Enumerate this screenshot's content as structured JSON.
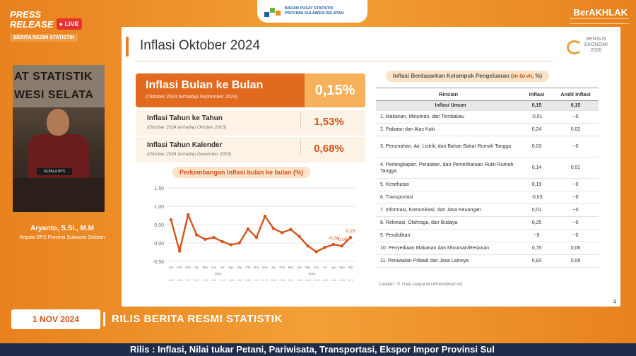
{
  "broadcast": {
    "press_release": "PRESS RELEASE",
    "live": "LIVE",
    "berita_label": "BERITA RESMI STATISTIK",
    "video_wall_line1": "AT STATISTIK",
    "video_wall_line2": "WESI SELATA",
    "nameplate": "KEPALA BPS",
    "speaker_name": "Aryanto, S.Si., M.M",
    "speaker_title": "Kepala BPS Provinsi Sulawesi Selatan",
    "top_logo_line1": "BADAN PUSAT STATISTIK",
    "top_logo_line2": "PROVINSI SULAWESI SELATAN",
    "berakhlak": "BerAKHLAK",
    "date": "1 NOV 2024",
    "rilis_title": "RILIS BERITA RESMI STATISTIK",
    "ticker": "Rilis : Inflasi, Nilai tukar Petani, Pariwisata, Transportasi, Ekspor Impor Provinsi Sul"
  },
  "slide": {
    "title": "Inflasi Oktober 2024",
    "sensus_logo": [
      "SENSUS",
      "EKONOMI",
      "2026"
    ],
    "mom": {
      "label": "Inflasi Bulan ke Bulan",
      "sub": "(Oktober 2024 terhadap September 2024)",
      "value": "0,15%"
    },
    "yoy": {
      "label": "Inflasi Tahun ke Tahun",
      "sub": "(Oktober 2024 terhadap Oktober 2023)",
      "value": "1,53%"
    },
    "ytd": {
      "label": "Inflasi Tahun Kalender",
      "sub": "(Oktober 2024 terhadap Desember 2023)",
      "value": "0,68%"
    },
    "chart_title": "Perkembangan Inflasi bulan ke bulan (%)",
    "table_title_prefix": "Inflasi Berdasarkan Kelompok Pengeluaran (",
    "table_title_hl": "m-to-m",
    "table_title_suffix": ", %)",
    "table_headers": [
      "Rincian",
      "Inflasi",
      "Andil Inflasi"
    ],
    "table_rows": [
      {
        "label": "Inflasi Umum",
        "inflasi": "0,15",
        "andil": "0,15",
        "umum": true
      },
      {
        "label": "1.  Makanan, Minuman, dan Tembakau",
        "inflasi": "-0,01",
        "andil": "~0"
      },
      {
        "label": "2.  Pakaian dan Alas Kaki",
        "inflasi": "0,24",
        "andil": "0,02"
      },
      {
        "label": "3.  Perumahan, Air, Listrik, dan Bahan Bakar Rumah Tangga",
        "inflasi": "0,03",
        "andil": "~0"
      },
      {
        "label": "4.  Perlengkapan, Peralatan, dan Pemeliharaan Rutin Rumah Tangga",
        "inflasi": "0,14",
        "andil": "0,01"
      },
      {
        "label": "5.  Kesehatan",
        "inflasi": "0,19",
        "andil": "~0"
      },
      {
        "label": "6.  Transportasi",
        "inflasi": "-0,03",
        "andil": "~0"
      },
      {
        "label": "7.  Informasi, Komunikasi, dan Jasa Keuangan",
        "inflasi": "0,01",
        "andil": "~0"
      },
      {
        "label": "8.  Rekreasi, Olahraga, dan Budaya",
        "inflasi": "0,25",
        "andil": "~0"
      },
      {
        "label": "9.  Pendidikan",
        "inflasi": "~0",
        "andil": "~0"
      },
      {
        "label": "10. Penyediaan Makanan dan Minuman/Restoran",
        "inflasi": "0,75",
        "andil": "0,06"
      },
      {
        "label": "11. Perawatan Pribadi dan Jasa Lainnya",
        "inflasi": "0,83",
        "andil": "0,06"
      }
    ],
    "footnote": "Catatan: \"0: Data sangat kecil/mendekati nol",
    "page_number": "4"
  },
  "chart_data": {
    "type": "line",
    "title": "Perkembangan Inflasi bulan ke bulan (%)",
    "ylim": [
      -0.5,
      1.5
    ],
    "yticks": [
      "1,50",
      "1,00",
      "0,50",
      "0,00",
      "-0,50"
    ],
    "x": [
      "Jan",
      "Feb",
      "Mar",
      "Apr",
      "Mei",
      "Jun",
      "Jul",
      "Agu",
      "Sep",
      "Okt",
      "Nov",
      "Des",
      "Jan",
      "Feb",
      "Mar",
      "Apr",
      "Mei",
      "Jun",
      "Jul",
      "Agu",
      "Sep",
      "Okt"
    ],
    "year_labels": [
      "2023",
      "2024"
    ],
    "values": [
      0.63,
      -0.22,
      0.77,
      0.22,
      0.1,
      0.15,
      0.04,
      -0.05,
      0.0,
      0.38,
      0.15,
      0.73,
      0.39,
      0.28,
      0.37,
      0.18,
      -0.08,
      -0.24,
      -0.12,
      -0.04,
      -0.08,
      0.15
    ],
    "annotations": [
      {
        "index": 19,
        "label": "-0,04"
      },
      {
        "index": 20,
        "label": "-0,08"
      },
      {
        "index": 21,
        "label": "0,15"
      }
    ],
    "color": "#d3531c"
  }
}
